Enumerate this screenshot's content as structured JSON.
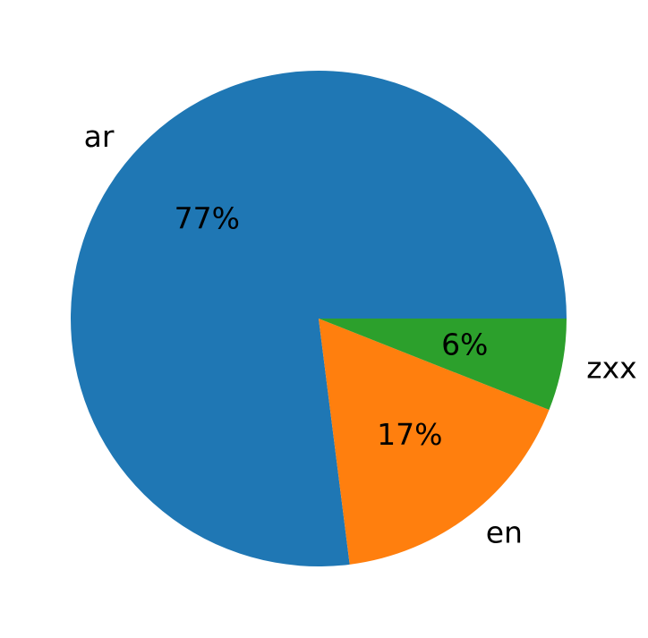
{
  "chart_data": {
    "type": "pie",
    "categories": [
      "ar",
      "en",
      "zxx"
    ],
    "values": [
      77,
      17,
      6
    ],
    "value_labels": [
      "77%",
      "17%",
      "6%"
    ],
    "colors": [
      "#1f77b4",
      "#ff7f0e",
      "#2ca02c"
    ]
  }
}
